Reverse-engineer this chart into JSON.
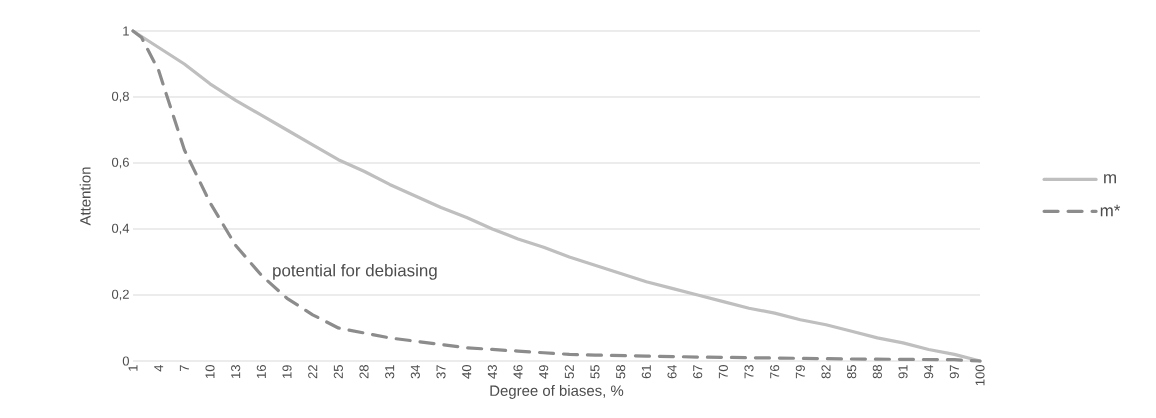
{
  "chart_data": {
    "type": "line",
    "xlabel": "Degree of biases, %",
    "ylabel": "Attention",
    "annotations": [
      "potential for debiasing"
    ],
    "xlim": [
      1,
      100
    ],
    "ylim": [
      0,
      1
    ],
    "xticks": [
      1,
      4,
      7,
      10,
      13,
      16,
      19,
      22,
      25,
      28,
      31,
      34,
      37,
      40,
      43,
      46,
      49,
      52,
      55,
      58,
      61,
      64,
      67,
      70,
      73,
      76,
      79,
      82,
      85,
      88,
      91,
      94,
      97,
      100
    ],
    "yticks": [
      0,
      {
        "value": 0.2,
        "label": "0,2"
      },
      {
        "value": 0.4,
        "label": "0,4"
      },
      {
        "value": 0.6,
        "label": "0,6"
      },
      {
        "value": 0.8,
        "label": "0,8"
      },
      1
    ],
    "grid": "y",
    "legend": "right",
    "marker": "none",
    "series": [
      {
        "name": "m",
        "color": "#bfbfbf",
        "line_style": "solid",
        "x": [
          1,
          4,
          7,
          10,
          13,
          16,
          19,
          22,
          25,
          28,
          31,
          34,
          37,
          40,
          43,
          46,
          49,
          52,
          55,
          58,
          61,
          64,
          67,
          70,
          73,
          76,
          79,
          82,
          85,
          88,
          91,
          94,
          97,
          100
        ],
        "values": [
          1,
          0.95,
          0.9,
          0.84,
          0.79,
          0.745,
          0.7,
          0.655,
          0.61,
          0.575,
          0.535,
          0.5,
          0.465,
          0.435,
          0.4,
          0.37,
          0.345,
          0.315,
          0.29,
          0.265,
          0.24,
          0.22,
          0.2,
          0.18,
          0.16,
          0.145,
          0.125,
          0.11,
          0.09,
          0.07,
          0.055,
          0.035,
          0.02,
          0
        ]
      },
      {
        "name": "m*",
        "color": "#8c8c8c",
        "line_style": "dashed",
        "x": [
          1,
          2,
          4,
          7,
          10,
          13,
          16,
          19,
          22,
          25,
          28,
          31,
          34,
          37,
          40,
          43,
          46,
          49,
          52,
          55,
          61,
          67,
          73,
          79,
          85,
          91,
          97,
          100
        ],
        "values": [
          1,
          0.98,
          0.88,
          0.64,
          0.48,
          0.35,
          0.26,
          0.19,
          0.14,
          0.1,
          0.085,
          0.07,
          0.06,
          0.05,
          0.04,
          0.035,
          0.03,
          0.025,
          0.02,
          0.018,
          0.015,
          0.012,
          0.01,
          0.008,
          0.006,
          0.005,
          0.004,
          0
        ]
      }
    ]
  }
}
